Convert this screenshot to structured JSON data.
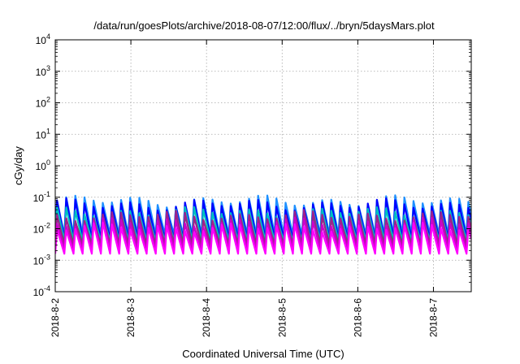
{
  "chart_data": {
    "type": "line",
    "title": "/data/run/goesPlots/archive/2018-08-07/12:00/flux/../bryn/5daysMars.plot",
    "xlabel": "Coordinated Universal Time (UTC)",
    "ylabel": "cGy/day",
    "y_scale": "log",
    "ylim": [
      0.0001,
      10000
    ],
    "y_ticks": [
      {
        "value": 0.0001,
        "base": "10",
        "exp": "-4"
      },
      {
        "value": 0.001,
        "base": "10",
        "exp": "-3"
      },
      {
        "value": 0.01,
        "base": "10",
        "exp": "-2"
      },
      {
        "value": 0.1,
        "base": "10",
        "exp": "-1"
      },
      {
        "value": 1,
        "base": "10",
        "exp": "0"
      },
      {
        "value": 10,
        "base": "10",
        "exp": "1"
      },
      {
        "value": 100,
        "base": "10",
        "exp": "2"
      },
      {
        "value": 1000,
        "base": "10",
        "exp": "3"
      },
      {
        "value": 10000,
        "base": "10",
        "exp": "4"
      }
    ],
    "xlim": [
      "2018-08-02",
      "2018-08-07 12:00"
    ],
    "x_ticks": [
      "2018-8-2",
      "2018-8-3",
      "2018-8-4",
      "2018-8-5",
      "2018-8-6",
      "2018-8-7"
    ],
    "grid": true,
    "legend": "none",
    "cycle_hours": 2.9,
    "colors": [
      "#ff00ff",
      "#cc00cc",
      "#a0208c",
      "#1e90ff",
      "#0000ff",
      "#00c0c0",
      "#2e8b57"
    ],
    "series": [
      {
        "color": "#1e90ff",
        "peak": 0.075,
        "trough": 0.0065
      },
      {
        "color": "#0000ff",
        "peak": 0.058,
        "trough": 0.0048
      },
      {
        "color": "#00c0c0",
        "peak": 0.034,
        "trough": 0.004
      },
      {
        "color": "#2e8b57",
        "peak": 0.02,
        "trough": 0.0034
      },
      {
        "color": "#a0208c",
        "peak": 0.026,
        "trough": 0.0028
      },
      {
        "color": "#cc00cc",
        "peak": 0.016,
        "trough": 0.0022
      },
      {
        "color": "#ff00ff",
        "peak": 0.011,
        "trough": 0.0016
      }
    ]
  }
}
